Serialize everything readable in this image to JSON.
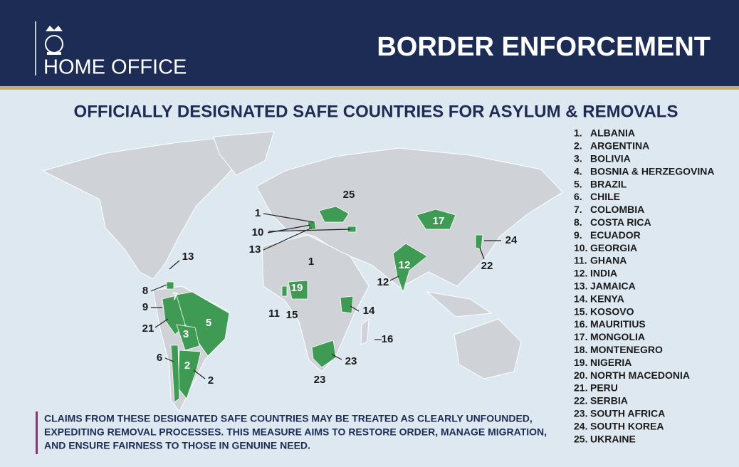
{
  "header": {
    "org": "HOME OFFICE",
    "title": "BORDER ENFORCEMENT"
  },
  "subtitle": "OFFICIALLY DESIGNATED SAFE COUNTRIES FOR ASYLUM & REMOVALS",
  "countries": [
    {
      "number": "1.",
      "name": "ALBANIA"
    },
    {
      "number": "2.",
      "name": "ARGENTINA"
    },
    {
      "number": "3.",
      "name": "BOLIVIA"
    },
    {
      "number": "4.",
      "name": "BOSNIA & HERZEGOVINA"
    },
    {
      "number": "5.",
      "name": "BRAZIL"
    },
    {
      "number": "6.",
      "name": "CHILE"
    },
    {
      "number": "7.",
      "name": "COLOMBIA"
    },
    {
      "number": "8.",
      "name": "COSTA RICA"
    },
    {
      "number": "9.",
      "name": "ECUADOR"
    },
    {
      "number": "10.",
      "name": "GEORGIA"
    },
    {
      "number": "11.",
      "name": "GHANA"
    },
    {
      "number": "12.",
      "name": "INDIA"
    },
    {
      "number": "13.",
      "name": "JAMAICA"
    },
    {
      "number": "14.",
      "name": "KENYA"
    },
    {
      "number": "15.",
      "name": "KOSOVO"
    },
    {
      "number": "16.",
      "name": "MAURITIUS"
    },
    {
      "number": "17.",
      "name": "MONGOLIA"
    },
    {
      "number": "18.",
      "name": "MONTENEGRO"
    },
    {
      "number": "19.",
      "name": "NIGERIA"
    },
    {
      "number": "20.",
      "name": "NORTH MACEDONIA"
    },
    {
      "number": "21.",
      "name": "PERU"
    },
    {
      "number": "22.",
      "name": "SERBIA"
    },
    {
      "number": "23.",
      "name": "SOUTH AFRICA"
    },
    {
      "number": "24.",
      "name": "SOUTH KOREA"
    },
    {
      "number": "25.",
      "name": "UKRAINE"
    }
  ],
  "map_labels": [
    "25",
    "1",
    "10",
    "13",
    "1",
    "17",
    "24",
    "22",
    "12",
    "12",
    "13",
    "8",
    "7",
    "9",
    "5",
    "21",
    "3",
    "6",
    "2",
    "2",
    "19",
    "11",
    "15",
    "14",
    "16",
    "23",
    "23"
  ],
  "footer": [
    "CLAIMS FROM THESE DESIGNATED SAFE COUNTRIES MAY BE TREATED AS CLEARLY UNFOUNDED,",
    "EXPEDITING REMOVAL PROCESSES. THIS MEASURE AIMS TO RESTORE ORDER, MANAGE MIGRATION,",
    "AND ENSURE FAIRNESS TO THOSE IN GENUINE NEED."
  ]
}
